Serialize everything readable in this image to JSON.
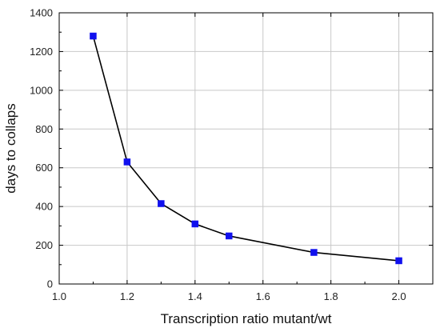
{
  "chart_data": {
    "type": "line",
    "title": "",
    "xlabel": "Transcription ratio mutant/wt",
    "ylabel": "days to collaps",
    "xlim": [
      1.0,
      2.1
    ],
    "ylim": [
      0,
      1400
    ],
    "x_ticks": [
      1.0,
      1.2,
      1.4,
      1.6,
      1.8,
      2.0
    ],
    "x_tick_labels": [
      "1.0",
      "1.2",
      "1.4",
      "1.6",
      "1.8",
      "2.0"
    ],
    "y_ticks": [
      0,
      200,
      400,
      600,
      800,
      1000,
      1200,
      1400
    ],
    "y_tick_labels": [
      "0",
      "200",
      "400",
      "600",
      "800",
      "1000",
      "1200",
      "1400"
    ],
    "grid": true,
    "legend": "none",
    "series": [
      {
        "x": [
          1.1,
          1.2,
          1.3,
          1.4,
          1.5,
          1.75,
          2.0
        ],
        "y": [
          1280,
          630,
          415,
          310,
          248,
          163,
          120
        ],
        "marker": "square",
        "marker_color": "#1010ee",
        "line_color": "#000000"
      }
    ]
  }
}
